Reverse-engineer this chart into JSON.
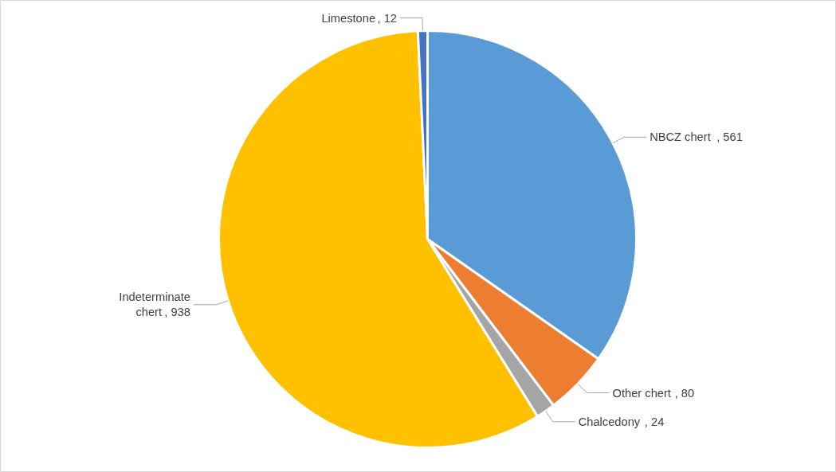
{
  "chart_data": {
    "type": "pie",
    "categories": [
      "NBCZ chert",
      "Other chert",
      "Chalcedony",
      "Indeterminate chert",
      "Limestone"
    ],
    "values": [
      561,
      80,
      24,
      938,
      12
    ],
    "colors": [
      "#5b9bd5",
      "#ed7d31",
      "#a5a5a5",
      "#ffc000",
      "#4472c4"
    ],
    "value_labels": [
      ", 561",
      ", 80",
      ", 24",
      ", 938",
      ", 12"
    ]
  }
}
